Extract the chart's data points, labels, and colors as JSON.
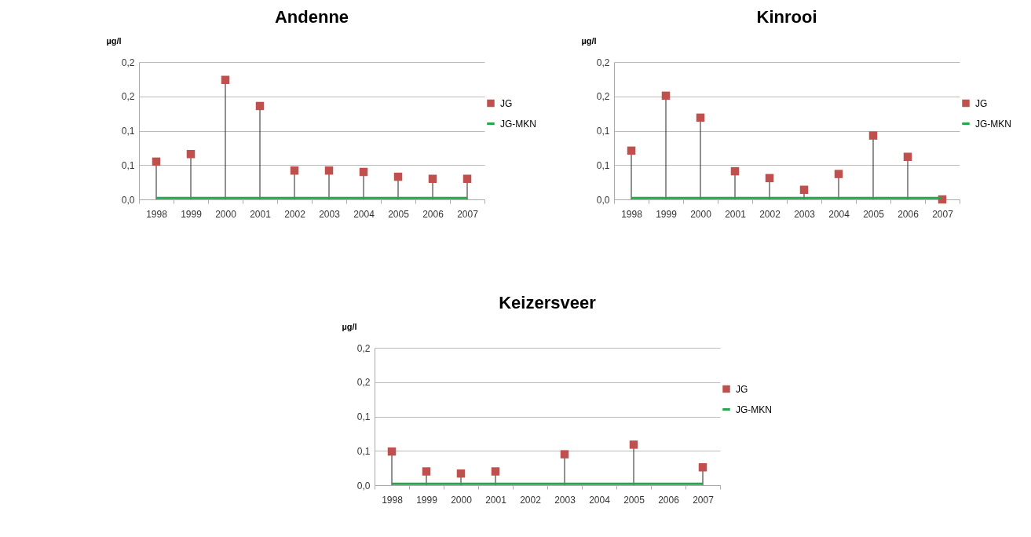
{
  "chart_data": [
    {
      "type": "lollipop",
      "title": "Andenne",
      "ylabel": "µg/l",
      "categories": [
        "1998",
        "1999",
        "2000",
        "2001",
        "2002",
        "2003",
        "2004",
        "2005",
        "2006",
        "2007"
      ],
      "ylim": [
        0,
        0.2
      ],
      "yticks": [
        {
          "value": 0,
          "label": "0,0"
        },
        {
          "value": 0.05,
          "label": "0,1"
        },
        {
          "value": 0.1,
          "label": "0,1"
        },
        {
          "value": 0.15,
          "label": "0,2"
        },
        {
          "value": 0.2,
          "label": "0,2"
        }
      ],
      "grid": "y",
      "legend": "right",
      "series": [
        {
          "name": "JG",
          "marker": "square",
          "color": "#c0504d",
          "values": [
            0.055,
            0.066,
            0.174,
            0.136,
            0.042,
            0.042,
            0.04,
            0.033,
            0.03,
            0.03
          ]
        },
        {
          "name": "JG-MKN",
          "type": "line",
          "color": "#22a84a",
          "values": [
            0.002,
            0.002,
            0.002,
            0.002,
            0.002,
            0.002,
            0.002,
            0.002,
            0.002,
            0.002
          ]
        }
      ]
    },
    {
      "type": "lollipop",
      "title": "Kinrooi",
      "ylabel": "µg/l",
      "categories": [
        "1998",
        "1999",
        "2000",
        "2001",
        "2002",
        "2003",
        "2004",
        "2005",
        "2006",
        "2007"
      ],
      "ylim": [
        0,
        0.2
      ],
      "yticks": [
        {
          "value": 0,
          "label": "0,0"
        },
        {
          "value": 0.05,
          "label": "0,1"
        },
        {
          "value": 0.1,
          "label": "0,1"
        },
        {
          "value": 0.15,
          "label": "0,2"
        },
        {
          "value": 0.2,
          "label": "0,2"
        }
      ],
      "grid": "y",
      "legend": "right",
      "series": [
        {
          "name": "JG",
          "marker": "square",
          "color": "#c0504d",
          "values": [
            0.071,
            0.151,
            0.119,
            0.041,
            0.031,
            0.014,
            0.037,
            0.093,
            0.062,
            0.0
          ]
        },
        {
          "name": "JG-MKN",
          "type": "line",
          "color": "#22a84a",
          "values": [
            0.002,
            0.002,
            0.002,
            0.002,
            0.002,
            0.002,
            0.002,
            0.002,
            0.002,
            0.002
          ]
        }
      ]
    },
    {
      "type": "lollipop",
      "title": "Keizersveer",
      "ylabel": "µg/l",
      "categories": [
        "1998",
        "1999",
        "2000",
        "2001",
        "2002",
        "2003",
        "2004",
        "2005",
        "2006",
        "2007"
      ],
      "ylim": [
        0,
        0.2
      ],
      "yticks": [
        {
          "value": 0,
          "label": "0,0"
        },
        {
          "value": 0.05,
          "label": "0,1"
        },
        {
          "value": 0.1,
          "label": "0,1"
        },
        {
          "value": 0.15,
          "label": "0,2"
        },
        {
          "value": 0.2,
          "label": "0,2"
        }
      ],
      "grid": "y",
      "legend": "right",
      "series": [
        {
          "name": "JG",
          "marker": "square",
          "color": "#c0504d",
          "values": [
            0.049,
            0.02,
            0.017,
            0.02,
            null,
            0.045,
            null,
            0.059,
            null,
            0.026
          ]
        },
        {
          "name": "JG-MKN",
          "type": "line",
          "color": "#22a84a",
          "values": [
            0.002,
            0.002,
            0.002,
            0.002,
            0.002,
            0.002,
            0.002,
            0.002,
            0.002,
            0.002
          ]
        }
      ]
    }
  ]
}
